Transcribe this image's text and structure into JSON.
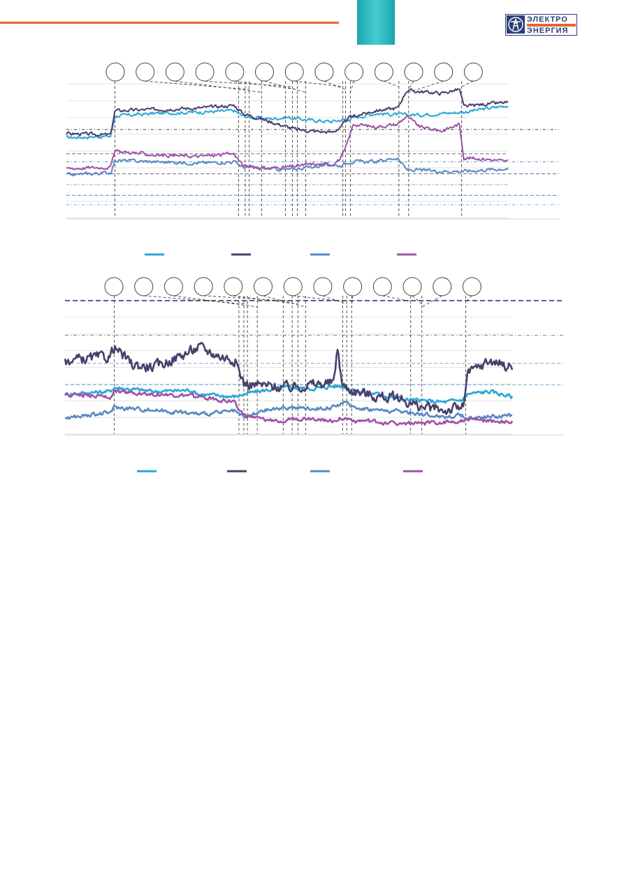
{
  "header": {
    "rule_color": "#e4662e",
    "block_gradient": [
      "#1aa5ad",
      "#45cbd1"
    ],
    "logo": {
      "word1": "ЭЛЕКТРО",
      "word2": "ЭНЕРГИЯ",
      "color": "#2b3f7a",
      "band_color": "#e4662e",
      "icon": "power-pylon-icon"
    }
  },
  "chart_data": [
    {
      "type": "line",
      "title": "",
      "xlabel": "",
      "ylabel": "",
      "grid": true,
      "legend": "bottom",
      "ylim": [
        0,
        100
      ],
      "x_range": [
        0,
        100
      ],
      "markers": {
        "count": 13,
        "labels": []
      },
      "event_lines_x": [
        11,
        39,
        40.5,
        41.4,
        44.2,
        49.6,
        51.2,
        52.3,
        54.2,
        62.6,
        63.2,
        64.3,
        75.3,
        77.5,
        89.5
      ],
      "threshold_lines_y": [
        66,
        48,
        42,
        33,
        25,
        17,
        10
      ],
      "series": [
        {
          "color": "#2aa7d6",
          "anchors": [
            [
              0,
              60
            ],
            [
              10,
              61
            ],
            [
              11,
              76
            ],
            [
              20,
              78
            ],
            [
              30,
              79
            ],
            [
              38,
              80
            ],
            [
              40,
              76
            ],
            [
              42,
              75
            ],
            [
              46,
              74
            ],
            [
              50,
              75
            ],
            [
              55,
              73
            ],
            [
              60,
              72
            ],
            [
              62,
              73
            ],
            [
              64,
              74
            ],
            [
              70,
              78
            ],
            [
              76,
              77
            ],
            [
              80,
              77
            ],
            [
              90,
              79
            ],
            [
              100,
              84
            ]
          ]
        },
        {
          "color": "#4a3f6b",
          "anchors": [
            [
              0,
              63
            ],
            [
              10,
              62
            ],
            [
              11,
              80
            ],
            [
              20,
              81
            ],
            [
              30,
              82
            ],
            [
              38,
              84
            ],
            [
              40,
              78
            ],
            [
              42,
              76
            ],
            [
              48,
              70
            ],
            [
              52,
              66
            ],
            [
              55,
              65
            ],
            [
              60,
              64
            ],
            [
              62,
              67
            ],
            [
              64,
              75
            ],
            [
              70,
              80
            ],
            [
              75,
              82
            ],
            [
              77,
              95
            ],
            [
              85,
              93
            ],
            [
              89,
              96
            ],
            [
              90,
              83
            ],
            [
              95,
              85
            ],
            [
              100,
              86
            ]
          ]
        },
        {
          "color": "#5a88c4",
          "anchors": [
            [
              0,
              32
            ],
            [
              10,
              34
            ],
            [
              11,
              43
            ],
            [
              20,
              42
            ],
            [
              30,
              41
            ],
            [
              38,
              42
            ],
            [
              40,
              38
            ],
            [
              45,
              37
            ],
            [
              50,
              36
            ],
            [
              55,
              38
            ],
            [
              60,
              40
            ],
            [
              62,
              39
            ],
            [
              64,
              42
            ],
            [
              70,
              42
            ],
            [
              75,
              45
            ],
            [
              77,
              36
            ],
            [
              85,
              35
            ],
            [
              90,
              35
            ],
            [
              100,
              37
            ]
          ]
        },
        {
          "color": "#a052a6",
          "anchors": [
            [
              0,
              37
            ],
            [
              10,
              38
            ],
            [
              11,
              50
            ],
            [
              20,
              47
            ],
            [
              30,
              46
            ],
            [
              38,
              48
            ],
            [
              40,
              39
            ],
            [
              45,
              37
            ],
            [
              50,
              38
            ],
            [
              55,
              40
            ],
            [
              60,
              40
            ],
            [
              62,
              44
            ],
            [
              63,
              50
            ],
            [
              65,
              70
            ],
            [
              70,
              68
            ],
            [
              75,
              70
            ],
            [
              77,
              76
            ],
            [
              80,
              68
            ],
            [
              85,
              65
            ],
            [
              89,
              70
            ],
            [
              90,
              45
            ],
            [
              95,
              44
            ],
            [
              100,
              42
            ]
          ]
        }
      ]
    },
    {
      "type": "line",
      "title": "",
      "xlabel": "",
      "ylabel": "",
      "grid": true,
      "legend": "bottom",
      "ylim": [
        0,
        100
      ],
      "x_range": [
        0,
        100
      ],
      "markers": {
        "count": 13,
        "labels": []
      },
      "event_lines_x": [
        11,
        38.9,
        40,
        40.8,
        43,
        48.8,
        50.8,
        52.1,
        53.8,
        62.1,
        63,
        64.1,
        77.3,
        79.8,
        89.6
      ],
      "threshold_lines_y": [
        100,
        74,
        53,
        37
      ],
      "series": [
        {
          "color": "#2aa7d6",
          "anchors": [
            [
              0,
              30
            ],
            [
              10,
              32
            ],
            [
              11,
              35
            ],
            [
              20,
              32
            ],
            [
              28,
              33
            ],
            [
              30,
              30
            ],
            [
              38,
              28
            ],
            [
              40,
              30
            ],
            [
              45,
              33
            ],
            [
              50,
              35
            ],
            [
              55,
              34
            ],
            [
              60,
              36
            ],
            [
              62,
              36
            ],
            [
              64,
              33
            ],
            [
              70,
              30
            ],
            [
              76,
              26
            ],
            [
              80,
              25
            ],
            [
              85,
              24
            ],
            [
              89,
              26
            ],
            [
              90,
              30
            ],
            [
              95,
              32
            ],
            [
              100,
              28
            ]
          ]
        },
        {
          "color": "#4a3f6b",
          "anchors": [
            [
              0,
              55
            ],
            [
              10,
              58
            ],
            [
              11,
              65
            ],
            [
              15,
              52
            ],
            [
              20,
              50
            ],
            [
              28,
              62
            ],
            [
              30,
              65
            ],
            [
              35,
              58
            ],
            [
              38,
              56
            ],
            [
              40,
              38
            ],
            [
              45,
              36
            ],
            [
              50,
              35
            ],
            [
              55,
              37
            ],
            [
              60,
              38
            ],
            [
              61,
              65
            ],
            [
              62,
              36
            ],
            [
              65,
              32
            ],
            [
              70,
              28
            ],
            [
              75,
              27
            ],
            [
              78,
              22
            ],
            [
              80,
              20
            ],
            [
              85,
              18
            ],
            [
              89,
              20
            ],
            [
              90,
              45
            ],
            [
              95,
              55
            ],
            [
              100,
              50
            ]
          ]
        },
        {
          "color": "#5a88c4",
          "anchors": [
            [
              0,
              12
            ],
            [
              10,
              16
            ],
            [
              11,
              20
            ],
            [
              20,
              18
            ],
            [
              30,
              15
            ],
            [
              38,
              17
            ],
            [
              40,
              12
            ],
            [
              45,
              18
            ],
            [
              50,
              20
            ],
            [
              55,
              19
            ],
            [
              60,
              20
            ],
            [
              62,
              24
            ],
            [
              65,
              20
            ],
            [
              70,
              18
            ],
            [
              75,
              17
            ],
            [
              80,
              15
            ],
            [
              85,
              13
            ],
            [
              89,
              14
            ],
            [
              90,
              12
            ],
            [
              95,
              13
            ],
            [
              100,
              14
            ]
          ]
        },
        {
          "color": "#a052a6",
          "anchors": [
            [
              0,
              30
            ],
            [
              10,
              28
            ],
            [
              11,
              32
            ],
            [
              20,
              30
            ],
            [
              30,
              28
            ],
            [
              38,
              24
            ],
            [
              40,
              14
            ],
            [
              45,
              10
            ],
            [
              50,
              11
            ],
            [
              55,
              12
            ],
            [
              60,
              10
            ],
            [
              62,
              12
            ],
            [
              65,
              10
            ],
            [
              70,
              9
            ],
            [
              75,
              8
            ],
            [
              80,
              8
            ],
            [
              85,
              9
            ],
            [
              89,
              10
            ],
            [
              90,
              11
            ],
            [
              95,
              10
            ],
            [
              100,
              9
            ]
          ]
        }
      ]
    }
  ]
}
